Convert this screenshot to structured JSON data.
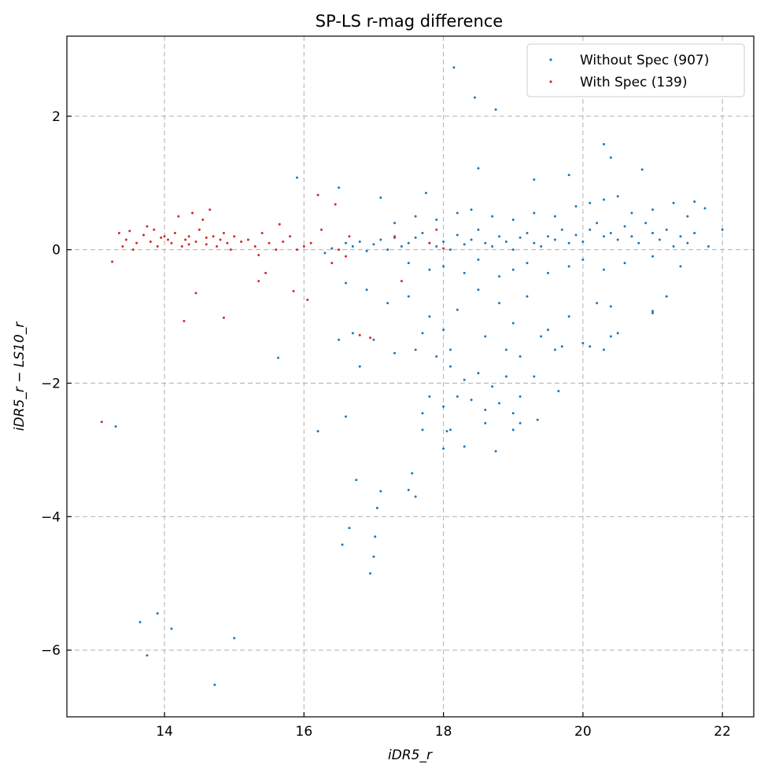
{
  "chart_data": {
    "type": "scatter",
    "title": "SP-LS r-mag difference",
    "xlabel": "iDR5_r",
    "ylabel": "iDR5_r − LS10_r",
    "xlim": [
      12.6,
      22.45
    ],
    "ylim": [
      -7.0,
      3.2
    ],
    "xticks": [
      14,
      16,
      18,
      20,
      22
    ],
    "yticks": [
      -6,
      -4,
      -2,
      0,
      2
    ],
    "xtick_labels": [
      "14",
      "16",
      "18",
      "20",
      "22"
    ],
    "ytick_labels": [
      "−6",
      "−4",
      "−2",
      "0",
      "2"
    ],
    "grid": true,
    "legend_position": "top-right",
    "series": [
      {
        "name": "Without Spec (907)",
        "color": "#1f77b4",
        "points": [
          [
            13.3,
            -2.65
          ],
          [
            13.65,
            -5.58
          ],
          [
            13.75,
            -6.08
          ],
          [
            13.9,
            -5.45
          ],
          [
            14.1,
            -5.68
          ],
          [
            14.72,
            -6.52
          ],
          [
            15.0,
            -5.82
          ],
          [
            15.63,
            -1.62
          ],
          [
            15.9,
            1.08
          ],
          [
            16.2,
            -2.72
          ],
          [
            16.5,
            0.93
          ],
          [
            16.55,
            -4.42
          ],
          [
            16.6,
            -2.5
          ],
          [
            16.65,
            -4.17
          ],
          [
            16.75,
            -3.45
          ],
          [
            16.8,
            -1.75
          ],
          [
            16.95,
            -4.85
          ],
          [
            17.0,
            -4.6
          ],
          [
            17.02,
            -4.3
          ],
          [
            17.05,
            -3.87
          ],
          [
            17.1,
            -3.62
          ],
          [
            17.1,
            0.78
          ],
          [
            17.5,
            -3.6
          ],
          [
            17.55,
            -3.35
          ],
          [
            17.6,
            -3.7
          ],
          [
            17.7,
            -2.45
          ],
          [
            17.7,
            -2.7
          ],
          [
            17.75,
            0.85
          ],
          [
            18.0,
            -2.98
          ],
          [
            18.05,
            -2.72
          ],
          [
            18.1,
            -2.7
          ],
          [
            18.15,
            2.73
          ],
          [
            18.3,
            -2.95
          ],
          [
            18.45,
            2.28
          ],
          [
            18.5,
            1.22
          ],
          [
            18.6,
            -2.6
          ],
          [
            18.75,
            -3.02
          ],
          [
            18.75,
            2.1
          ],
          [
            19.0,
            -2.7
          ],
          [
            19.1,
            -2.6
          ],
          [
            19.35,
            -2.55
          ],
          [
            19.3,
            1.05
          ],
          [
            19.65,
            -2.12
          ],
          [
            19.8,
            1.12
          ],
          [
            20.3,
            1.58
          ],
          [
            20.4,
            1.38
          ],
          [
            20.85,
            1.2
          ],
          [
            21.0,
            -0.95
          ],
          [
            21.2,
            -0.7
          ],
          [
            21.6,
            0.72
          ],
          [
            21.75,
            0.62
          ],
          [
            22.0,
            0.3
          ],
          [
            16.3,
            -0.05
          ],
          [
            16.4,
            0.02
          ],
          [
            16.6,
            0.1
          ],
          [
            16.7,
            0.05
          ],
          [
            16.8,
            0.12
          ],
          [
            16.9,
            -0.02
          ],
          [
            17.0,
            0.08
          ],
          [
            17.1,
            0.15
          ],
          [
            17.2,
            0.0
          ],
          [
            17.3,
            0.2
          ],
          [
            17.4,
            0.05
          ],
          [
            17.5,
            0.1
          ],
          [
            17.6,
            0.18
          ],
          [
            17.7,
            0.25
          ],
          [
            17.8,
            0.1
          ],
          [
            17.9,
            0.05
          ],
          [
            18.0,
            0.12
          ],
          [
            18.1,
            0.0
          ],
          [
            18.2,
            0.22
          ],
          [
            18.3,
            0.08
          ],
          [
            18.4,
            0.15
          ],
          [
            18.5,
            0.3
          ],
          [
            18.6,
            0.1
          ],
          [
            18.7,
            0.05
          ],
          [
            18.8,
            0.2
          ],
          [
            18.9,
            0.12
          ],
          [
            19.0,
            0.0
          ],
          [
            19.1,
            0.18
          ],
          [
            19.2,
            0.25
          ],
          [
            19.3,
            0.1
          ],
          [
            19.4,
            0.05
          ],
          [
            19.5,
            0.2
          ],
          [
            19.6,
            0.15
          ],
          [
            19.7,
            0.3
          ],
          [
            19.8,
            0.1
          ],
          [
            19.9,
            0.22
          ],
          [
            20.0,
            0.12
          ],
          [
            20.1,
            0.3
          ],
          [
            20.2,
            0.4
          ],
          [
            20.3,
            0.2
          ],
          [
            20.4,
            0.25
          ],
          [
            20.5,
            0.15
          ],
          [
            20.6,
            0.35
          ],
          [
            20.7,
            0.2
          ],
          [
            20.8,
            0.1
          ],
          [
            20.9,
            0.4
          ],
          [
            21.0,
            0.25
          ],
          [
            21.1,
            0.15
          ],
          [
            21.2,
            0.3
          ],
          [
            21.3,
            0.05
          ],
          [
            21.4,
            0.2
          ],
          [
            21.5,
            0.1
          ],
          [
            21.6,
            0.25
          ],
          [
            21.8,
            0.05
          ],
          [
            17.3,
            0.4
          ],
          [
            17.6,
            0.5
          ],
          [
            17.9,
            0.45
          ],
          [
            18.2,
            0.55
          ],
          [
            18.4,
            0.6
          ],
          [
            18.7,
            0.5
          ],
          [
            19.0,
            0.45
          ],
          [
            19.3,
            0.55
          ],
          [
            19.6,
            0.5
          ],
          [
            19.9,
            0.65
          ],
          [
            20.1,
            0.7
          ],
          [
            20.3,
            0.75
          ],
          [
            20.5,
            0.8
          ],
          [
            20.7,
            0.55
          ],
          [
            21.0,
            0.6
          ],
          [
            21.3,
            0.7
          ],
          [
            21.5,
            0.5
          ],
          [
            17.5,
            -0.2
          ],
          [
            17.8,
            -0.3
          ],
          [
            18.0,
            -0.25
          ],
          [
            18.3,
            -0.35
          ],
          [
            18.5,
            -0.15
          ],
          [
            18.8,
            -0.4
          ],
          [
            19.0,
            -0.3
          ],
          [
            19.2,
            -0.2
          ],
          [
            19.5,
            -0.35
          ],
          [
            19.8,
            -0.25
          ],
          [
            20.0,
            -0.15
          ],
          [
            20.3,
            -0.3
          ],
          [
            20.6,
            -0.2
          ],
          [
            21.0,
            -0.1
          ],
          [
            21.4,
            -0.25
          ],
          [
            16.6,
            -0.5
          ],
          [
            16.9,
            -0.6
          ],
          [
            17.2,
            -0.8
          ],
          [
            17.5,
            -0.7
          ],
          [
            17.8,
            -1.0
          ],
          [
            18.0,
            -1.2
          ],
          [
            18.2,
            -0.9
          ],
          [
            18.5,
            -0.6
          ],
          [
            18.6,
            -1.3
          ],
          [
            18.8,
            -0.8
          ],
          [
            19.0,
            -1.1
          ],
          [
            19.2,
            -0.7
          ],
          [
            19.4,
            -1.3
          ],
          [
            19.6,
            -1.5
          ],
          [
            19.8,
            -1.0
          ],
          [
            20.0,
            -1.4
          ],
          [
            20.2,
            -0.8
          ],
          [
            20.4,
            -1.3
          ],
          [
            16.5,
            -1.35
          ],
          [
            16.7,
            -1.25
          ],
          [
            17.0,
            -1.35
          ],
          [
            17.3,
            -1.55
          ],
          [
            17.6,
            -1.5
          ],
          [
            17.9,
            -1.6
          ],
          [
            18.1,
            -1.75
          ],
          [
            18.3,
            -1.95
          ],
          [
            18.5,
            -1.85
          ],
          [
            18.7,
            -2.05
          ],
          [
            18.9,
            -1.9
          ],
          [
            19.1,
            -2.2
          ],
          [
            19.3,
            -1.9
          ],
          [
            17.8,
            -2.2
          ],
          [
            18.0,
            -2.35
          ],
          [
            18.2,
            -2.2
          ],
          [
            18.4,
            -2.25
          ],
          [
            18.6,
            -2.4
          ],
          [
            18.8,
            -2.3
          ],
          [
            19.0,
            -2.45
          ],
          [
            18.1,
            -1.5
          ],
          [
            17.7,
            -1.25
          ],
          [
            18.9,
            -1.5
          ],
          [
            19.1,
            -1.6
          ],
          [
            19.5,
            -1.2
          ],
          [
            19.7,
            -1.45
          ],
          [
            20.1,
            -1.45
          ],
          [
            20.3,
            -1.5
          ],
          [
            20.4,
            -0.85
          ],
          [
            20.5,
            -1.25
          ],
          [
            21.0,
            -0.92
          ]
        ]
      },
      {
        "name": "With Spec (139)",
        "color": "#d62728",
        "points": [
          [
            13.1,
            -2.58
          ],
          [
            13.25,
            -0.18
          ],
          [
            13.35,
            0.25
          ],
          [
            13.4,
            0.05
          ],
          [
            13.45,
            0.15
          ],
          [
            13.5,
            0.28
          ],
          [
            13.55,
            0.0
          ],
          [
            13.6,
            0.1
          ],
          [
            13.7,
            0.22
          ],
          [
            13.75,
            0.35
          ],
          [
            13.8,
            0.12
          ],
          [
            13.85,
            0.3
          ],
          [
            13.9,
            0.05
          ],
          [
            14.0,
            0.2
          ],
          [
            14.05,
            0.15
          ],
          [
            14.1,
            0.1
          ],
          [
            14.15,
            0.25
          ],
          [
            14.2,
            0.5
          ],
          [
            14.25,
            0.05
          ],
          [
            14.3,
            0.15
          ],
          [
            14.35,
            0.2
          ],
          [
            14.4,
            0.55
          ],
          [
            14.45,
            0.12
          ],
          [
            14.5,
            0.3
          ],
          [
            14.55,
            0.45
          ],
          [
            14.6,
            0.08
          ],
          [
            14.65,
            0.6
          ],
          [
            14.7,
            0.2
          ],
          [
            14.75,
            0.05
          ],
          [
            14.8,
            0.15
          ],
          [
            14.85,
            0.25
          ],
          [
            14.9,
            0.1
          ],
          [
            14.95,
            0.0
          ],
          [
            15.0,
            0.2
          ],
          [
            15.1,
            0.12
          ],
          [
            15.2,
            0.15
          ],
          [
            15.3,
            0.05
          ],
          [
            15.35,
            -0.08
          ],
          [
            15.4,
            0.25
          ],
          [
            15.45,
            -0.35
          ],
          [
            15.5,
            0.1
          ],
          [
            15.6,
            0.0
          ],
          [
            15.65,
            0.38
          ],
          [
            15.7,
            0.12
          ],
          [
            15.8,
            0.2
          ],
          [
            15.85,
            -0.62
          ],
          [
            15.9,
            0.0
          ],
          [
            16.0,
            0.05
          ],
          [
            16.05,
            -0.75
          ],
          [
            16.1,
            0.1
          ],
          [
            16.2,
            0.82
          ],
          [
            16.25,
            0.3
          ],
          [
            16.4,
            -0.2
          ],
          [
            16.45,
            0.68
          ],
          [
            16.5,
            0.0
          ],
          [
            16.6,
            -0.1
          ],
          [
            16.65,
            0.2
          ],
          [
            16.8,
            -1.28
          ],
          [
            16.95,
            -1.32
          ],
          [
            17.3,
            0.18
          ],
          [
            17.4,
            -0.47
          ],
          [
            17.8,
            0.1
          ],
          [
            17.9,
            0.3
          ],
          [
            18.0,
            0.02
          ],
          [
            14.28,
            -1.07
          ],
          [
            14.45,
            -0.65
          ],
          [
            14.85,
            -1.02
          ],
          [
            15.35,
            -0.47
          ],
          [
            13.95,
            0.18
          ],
          [
            14.35,
            0.08
          ],
          [
            14.6,
            0.18
          ]
        ]
      }
    ]
  }
}
